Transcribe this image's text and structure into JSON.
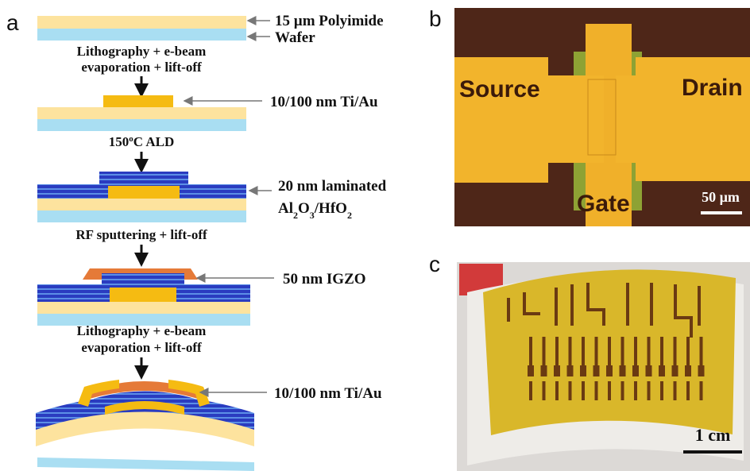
{
  "panel_a": {
    "label": "a",
    "layer_labels": {
      "polyimide": "15 µm Polyimide",
      "wafer": "Wafer",
      "metal_1": "10/100 nm Ti/Au",
      "dielectric_line1": "20 nm laminated",
      "dielectric_line2": [
        "Al",
        "2",
        "O",
        "3",
        "/HfO",
        "2"
      ],
      "igzo": "50 nm IGZO",
      "metal_2": "10/100 nm Ti/Au"
    },
    "process_steps": [
      {
        "lines": [
          "Lithography + e-beam",
          "evaporation + lift-off"
        ]
      },
      {
        "parts": [
          "150",
          "o",
          "C ALD"
        ]
      },
      {
        "lines": [
          "RF sputtering + lift-off"
        ]
      },
      {
        "lines": [
          "Lithography + e-beam",
          "evaporation + lift-off"
        ]
      }
    ]
  },
  "panel_b": {
    "label": "b",
    "source": "Source",
    "drain": "Drain",
    "gate": "Gate",
    "scale_bar": "50 µm"
  },
  "panel_c": {
    "label": "c",
    "scale_bar": "1 cm"
  }
}
